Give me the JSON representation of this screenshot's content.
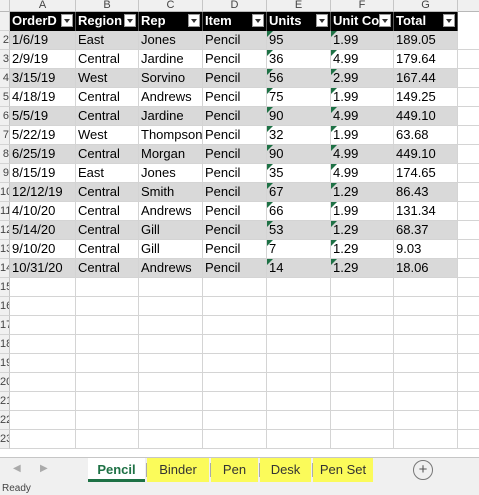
{
  "columns": [
    "A",
    "B",
    "C",
    "D",
    "E",
    "F",
    "G"
  ],
  "rows_numbers": [
    "2",
    "3",
    "4",
    "5",
    "6",
    "7",
    "8",
    "9",
    "10",
    "11",
    "12",
    "13",
    "14",
    "15",
    "16",
    "17",
    "18",
    "19",
    "20",
    "21",
    "22",
    "23"
  ],
  "table": {
    "headers": [
      "OrderD",
      "Region",
      "Rep",
      "Item",
      "Units",
      "Unit Co",
      "Total"
    ],
    "rows": [
      [
        "1/6/19",
        "East",
        "Jones",
        "Pencil",
        "95",
        "1.99",
        "189.05"
      ],
      [
        "2/9/19",
        "Central",
        "Jardine",
        "Pencil",
        "36",
        "4.99",
        "179.64"
      ],
      [
        "3/15/19",
        "West",
        "Sorvino",
        "Pencil",
        "56",
        "2.99",
        "167.44"
      ],
      [
        "4/18/19",
        "Central",
        "Andrews",
        "Pencil",
        "75",
        "1.99",
        "149.25"
      ],
      [
        "5/5/19",
        "Central",
        "Jardine",
        "Pencil",
        "90",
        "4.99",
        "449.10"
      ],
      [
        "5/22/19",
        "West",
        "Thompson",
        "Pencil",
        "32",
        "1.99",
        "63.68"
      ],
      [
        "6/25/19",
        "Central",
        "Morgan",
        "Pencil",
        "90",
        "4.99",
        "449.10"
      ],
      [
        "8/15/19",
        "East",
        "Jones",
        "Pencil",
        "35",
        "4.99",
        "174.65"
      ],
      [
        "12/12/19",
        "Central",
        "Smith",
        "Pencil",
        "67",
        "1.29",
        "86.43"
      ],
      [
        "4/10/20",
        "Central",
        "Andrews",
        "Pencil",
        "66",
        "1.99",
        "131.34"
      ],
      [
        "5/14/20",
        "Central",
        "Gill",
        "Pencil",
        "53",
        "1.29",
        "68.37"
      ],
      [
        "9/10/20",
        "Central",
        "Gill",
        "Pencil",
        "7",
        "1.29",
        "9.03"
      ],
      [
        "10/31/20",
        "Central",
        "Andrews",
        "Pencil",
        "14",
        "1.29",
        "18.06"
      ]
    ]
  },
  "sheets": {
    "tabs": [
      "Pencil",
      "Binder",
      "Pen",
      "Desk",
      "Pen Set"
    ],
    "active": "Pencil",
    "add_icon": "+",
    "prev_icon": "◀",
    "next_icon": "▶"
  },
  "status": {
    "text": "Ready"
  },
  "colors": {
    "header_bg": "#000000",
    "band": "#d9d9d9",
    "highlight": "#fbfb5a",
    "accent": "#1e7145"
  }
}
